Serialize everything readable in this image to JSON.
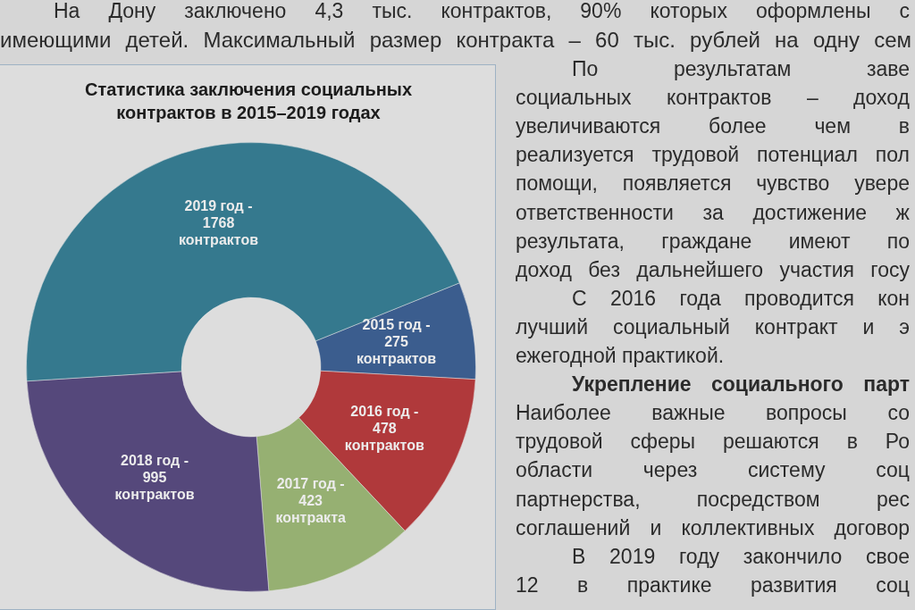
{
  "chart_data": {
    "type": "donut",
    "title": "Статистика заключения социальных контрактов в 2015–2019 годах",
    "categories": [
      "2015 год -",
      "2016 год -",
      "2017 год -",
      "2018 год -",
      "2019 год -"
    ],
    "values": [
      275,
      478,
      423,
      995,
      1768
    ],
    "colors": [
      "#3b5d8e",
      "#b0393b",
      "#96b072",
      "#55487b",
      "#35798e"
    ],
    "value_labels": [
      "275 контрактов",
      "478 контрактов",
      "423 контракта",
      "995 контрактов",
      "1768 контрактов"
    ],
    "annotations": [
      "На Дону заключено 4,3 тыс. контрактов, 90% которых оформлены с",
      "имеющими детей. Максимальный размер контракта – 60 тыс. рублей на одну сем",
      "По результатам заве",
      "социальных контрактов – доход",
      "увеличиваются более чем в",
      "реализуется трудовой потенциал пол",
      "помощи, появляется чувство увере",
      "ответственности за достижение ж",
      "результата, граждане имеют по",
      "доход без дальнейшего участия госу",
      "С 2016 года проводится кон",
      "лучший социальный контракт и э",
      "ежегодной практикой.",
      "Укрепление социального парт",
      "Наиболее важные вопросы со",
      "трудовой сферы решаются в Ро",
      "области через систему соц",
      "партнерства, посредством рес",
      "соглашений и коллективных договор",
      "В 2019 году закончило свое",
      "12 в практике развития соц"
    ]
  }
}
